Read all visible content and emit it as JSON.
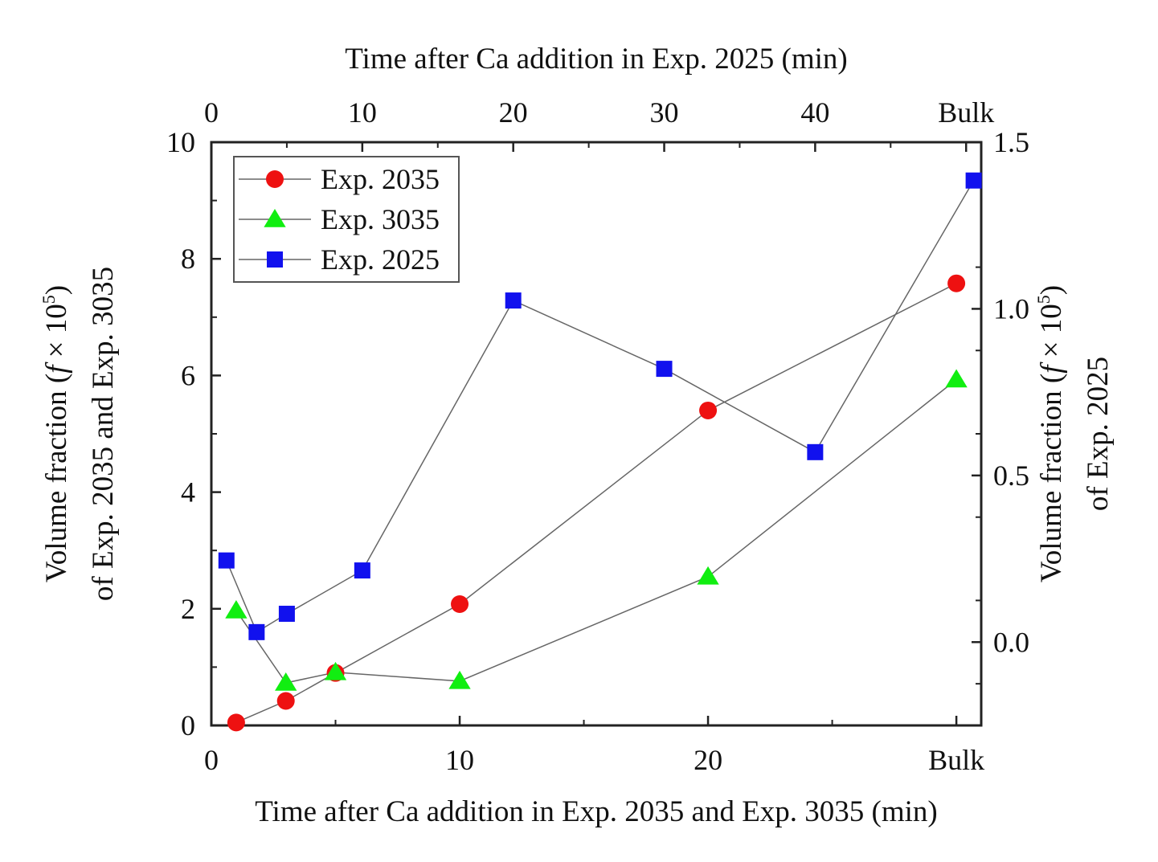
{
  "chart_data": {
    "type": "line",
    "title": "",
    "bottom_axis": {
      "label": "Time after Ca addition in Exp. 2035 and Exp. 3035 (min)",
      "ticks": [
        {
          "value": 0,
          "label": "0"
        },
        {
          "value": 10,
          "label": "10"
        },
        {
          "value": 20,
          "label": "20"
        },
        {
          "value": 30,
          "label": "Bulk"
        }
      ],
      "range": [
        0,
        31
      ]
    },
    "top_axis": {
      "label": "Time after Ca addition in Exp. 2025 (min)",
      "ticks": [
        {
          "value": 0,
          "label": "0"
        },
        {
          "value": 10,
          "label": "10"
        },
        {
          "value": 20,
          "label": "20"
        },
        {
          "value": 30,
          "label": "30"
        },
        {
          "value": 40,
          "label": "40"
        },
        {
          "value": 50,
          "label": "Bulk"
        }
      ],
      "range": [
        0,
        51
      ]
    },
    "left_axis": {
      "label_line1": "Volume fraction (",
      "label_f": "f",
      "label_times": " × 10",
      "label_sup": "5",
      "label_close": ")",
      "label_line2": "of Exp. 2035 and Exp. 3035",
      "ticks": [
        "0",
        "2",
        "4",
        "6",
        "8",
        "10"
      ],
      "range": [
        0,
        10
      ]
    },
    "right_axis": {
      "label_line1": "Volume fraction (",
      "label_f": "f",
      "label_times": " × 10",
      "label_sup": "5",
      "label_close": ")",
      "label_line2": "of Exp. 2025",
      "ticks": [
        "0.0",
        "0.5",
        "1.0",
        "1.5"
      ],
      "range": [
        -0.25,
        1.5
      ]
    },
    "series": [
      {
        "name": "Exp. 2035",
        "marker": "circle",
        "color": "#ee1111",
        "axis": "bottom-left",
        "points": [
          {
            "x": 1,
            "y": 0.05
          },
          {
            "x": 3,
            "y": 0.42
          },
          {
            "x": 5,
            "y": 0.9
          },
          {
            "x": 10,
            "y": 2.08
          },
          {
            "x": 20,
            "y": 5.4
          },
          {
            "x": 30,
            "y": 7.58
          }
        ]
      },
      {
        "name": "Exp. 3035",
        "marker": "triangle",
        "color": "#11ee11",
        "axis": "bottom-left",
        "points": [
          {
            "x": 1,
            "y": 1.97
          },
          {
            "x": 3,
            "y": 0.73
          },
          {
            "x": 5,
            "y": 0.91
          },
          {
            "x": 10,
            "y": 0.76
          },
          {
            "x": 20,
            "y": 2.55
          },
          {
            "x": 30,
            "y": 5.93
          }
        ]
      },
      {
        "name": "Exp. 2025",
        "marker": "square",
        "color": "#1111ee",
        "axis": "top-right",
        "points": [
          {
            "x": 1,
            "y": 0.245
          },
          {
            "x": 3,
            "y": 0.03
          },
          {
            "x": 5,
            "y": 0.085
          },
          {
            "x": 10,
            "y": 0.215
          },
          {
            "x": 20,
            "y": 1.025
          },
          {
            "x": 30,
            "y": 0.82
          },
          {
            "x": 40,
            "y": 0.57
          },
          {
            "x": 50.5,
            "y": 1.385
          }
        ]
      }
    ],
    "legend": {
      "position": "top-left",
      "entries": [
        "Exp. 2035",
        "Exp. 3035",
        "Exp. 2025"
      ]
    },
    "grid": false
  }
}
